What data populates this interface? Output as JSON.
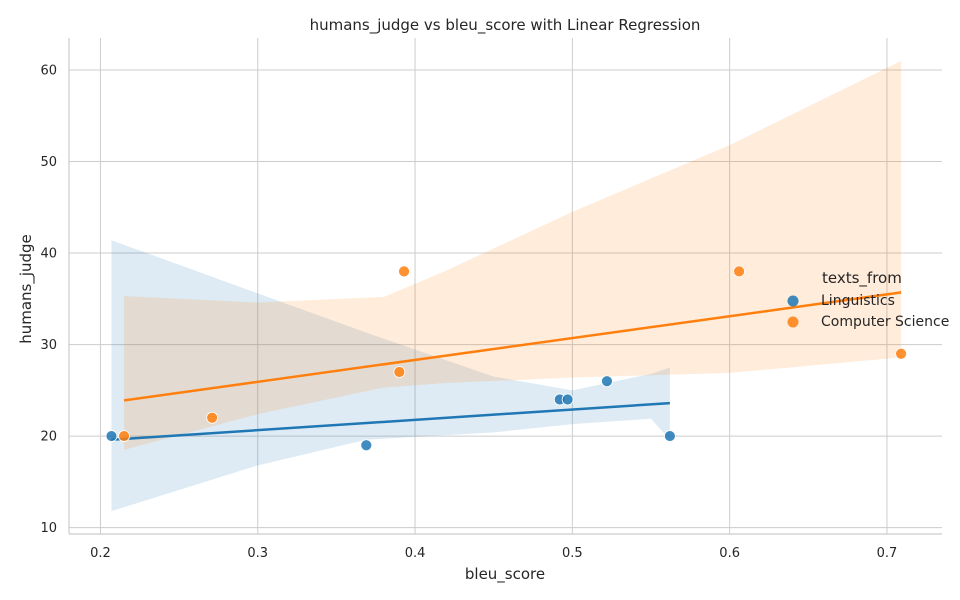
{
  "chart_data": {
    "type": "scatter",
    "title": "humans_judge vs bleu_score with Linear Regression",
    "xlabel": "bleu_score",
    "ylabel": "humans_judge",
    "xlim": [
      0.18,
      0.735
    ],
    "ylim": [
      9.3,
      63.5
    ],
    "xticks": [
      0.2,
      0.3,
      0.4,
      0.5,
      0.6,
      0.7
    ],
    "yticks": [
      10,
      20,
      30,
      40,
      50,
      60
    ],
    "grid": true,
    "legend": {
      "title": "texts_from",
      "position": "right"
    },
    "series": [
      {
        "name": "Linguistics",
        "color": "#1f77b4",
        "points": [
          {
            "x": 0.207,
            "y": 20
          },
          {
            "x": 0.369,
            "y": 19
          },
          {
            "x": 0.492,
            "y": 24
          },
          {
            "x": 0.497,
            "y": 24
          },
          {
            "x": 0.522,
            "y": 26
          },
          {
            "x": 0.562,
            "y": 20
          }
        ],
        "regression": {
          "x_range": [
            0.207,
            0.562
          ],
          "y_range": [
            19.6,
            23.6
          ]
        },
        "ci_band": [
          {
            "x": 0.207,
            "lower": 11.8,
            "upper": 41.4
          },
          {
            "x": 0.3,
            "lower": 16.8,
            "upper": 35.6
          },
          {
            "x": 0.369,
            "lower": 19.6,
            "upper": 31.3
          },
          {
            "x": 0.45,
            "lower": 20.4,
            "upper": 26.5
          },
          {
            "x": 0.5,
            "lower": 21.3,
            "upper": 25.0
          },
          {
            "x": 0.55,
            "lower": 21.9,
            "upper": 26.8
          },
          {
            "x": 0.562,
            "lower": 19.6,
            "upper": 27.5
          }
        ]
      },
      {
        "name": "Computer Science",
        "color": "#ff7f0e",
        "points": [
          {
            "x": 0.215,
            "y": 20
          },
          {
            "x": 0.271,
            "y": 22
          },
          {
            "x": 0.39,
            "y": 27
          },
          {
            "x": 0.393,
            "y": 38
          },
          {
            "x": 0.606,
            "y": 38
          },
          {
            "x": 0.709,
            "y": 29
          }
        ],
        "regression": {
          "x_range": [
            0.215,
            0.709
          ],
          "y_range": [
            23.9,
            35.7
          ]
        },
        "ci_band": [
          {
            "x": 0.215,
            "lower": 18.5,
            "upper": 35.3
          },
          {
            "x": 0.3,
            "lower": 22.4,
            "upper": 34.6
          },
          {
            "x": 0.38,
            "lower": 25.3,
            "upper": 35.2
          },
          {
            "x": 0.42,
            "lower": 25.8,
            "upper": 38.1
          },
          {
            "x": 0.5,
            "lower": 26.4,
            "upper": 44.5
          },
          {
            "x": 0.6,
            "lower": 26.9,
            "upper": 51.8
          },
          {
            "x": 0.709,
            "lower": 28.6,
            "upper": 61.0
          }
        ]
      }
    ]
  }
}
